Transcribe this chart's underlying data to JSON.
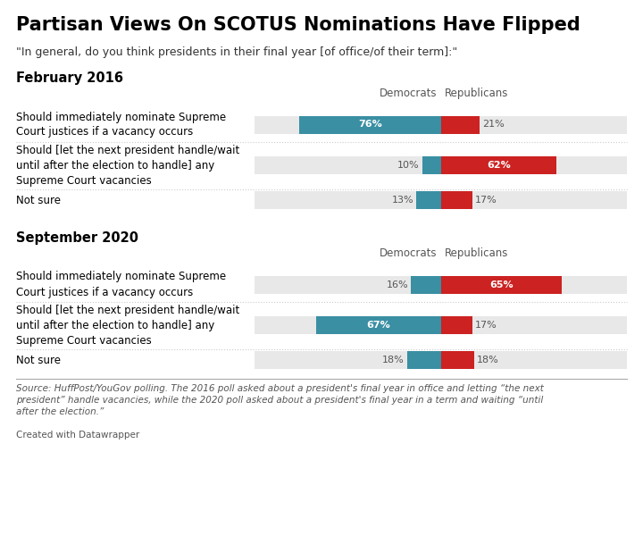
{
  "title": "Partisan Views On SCOTUS Nominations Have Flipped",
  "subtitle": "\"In general, do you think presidents in their final year [of office/of their term]:\"",
  "source_text": "Source: HuffPost/YouGov polling. The 2016 poll asked about a president's final year in office and letting “the next\npresident” handle vacancies, while the 2020 poll asked about a president's final year in a term and waiting “until\nafter the election.”",
  "credit": "Created with Datawrapper",
  "dem_color": "#3a8fa3",
  "rep_color": "#cc2222",
  "bar_bg_color": "#e8e8e8",
  "sep_color": "#cccccc",
  "section_2016": {
    "label": "February 2016",
    "rows": [
      {
        "question": "Should immediately nominate Supreme\nCourt justices if a vacancy occurs",
        "dem": 76,
        "rep": 21,
        "n_lines": 2
      },
      {
        "question": "Should [let the next president handle/wait\nuntil after the election to handle] any\nSupreme Court vacancies",
        "dem": 10,
        "rep": 62,
        "n_lines": 3
      },
      {
        "question": "Not sure",
        "dem": 13,
        "rep": 17,
        "n_lines": 1
      }
    ]
  },
  "section_2020": {
    "label": "September 2020",
    "rows": [
      {
        "question": "Should immediately nominate Supreme\nCourt justices if a vacancy occurs",
        "dem": 16,
        "rep": 65,
        "n_lines": 2
      },
      {
        "question": "Should [let the next president handle/wait\nuntil after the election to handle] any\nSupreme Court vacancies",
        "dem": 67,
        "rep": 17,
        "n_lines": 3
      },
      {
        "question": "Not sure",
        "dem": 18,
        "rep": 18,
        "n_lines": 1
      }
    ]
  }
}
